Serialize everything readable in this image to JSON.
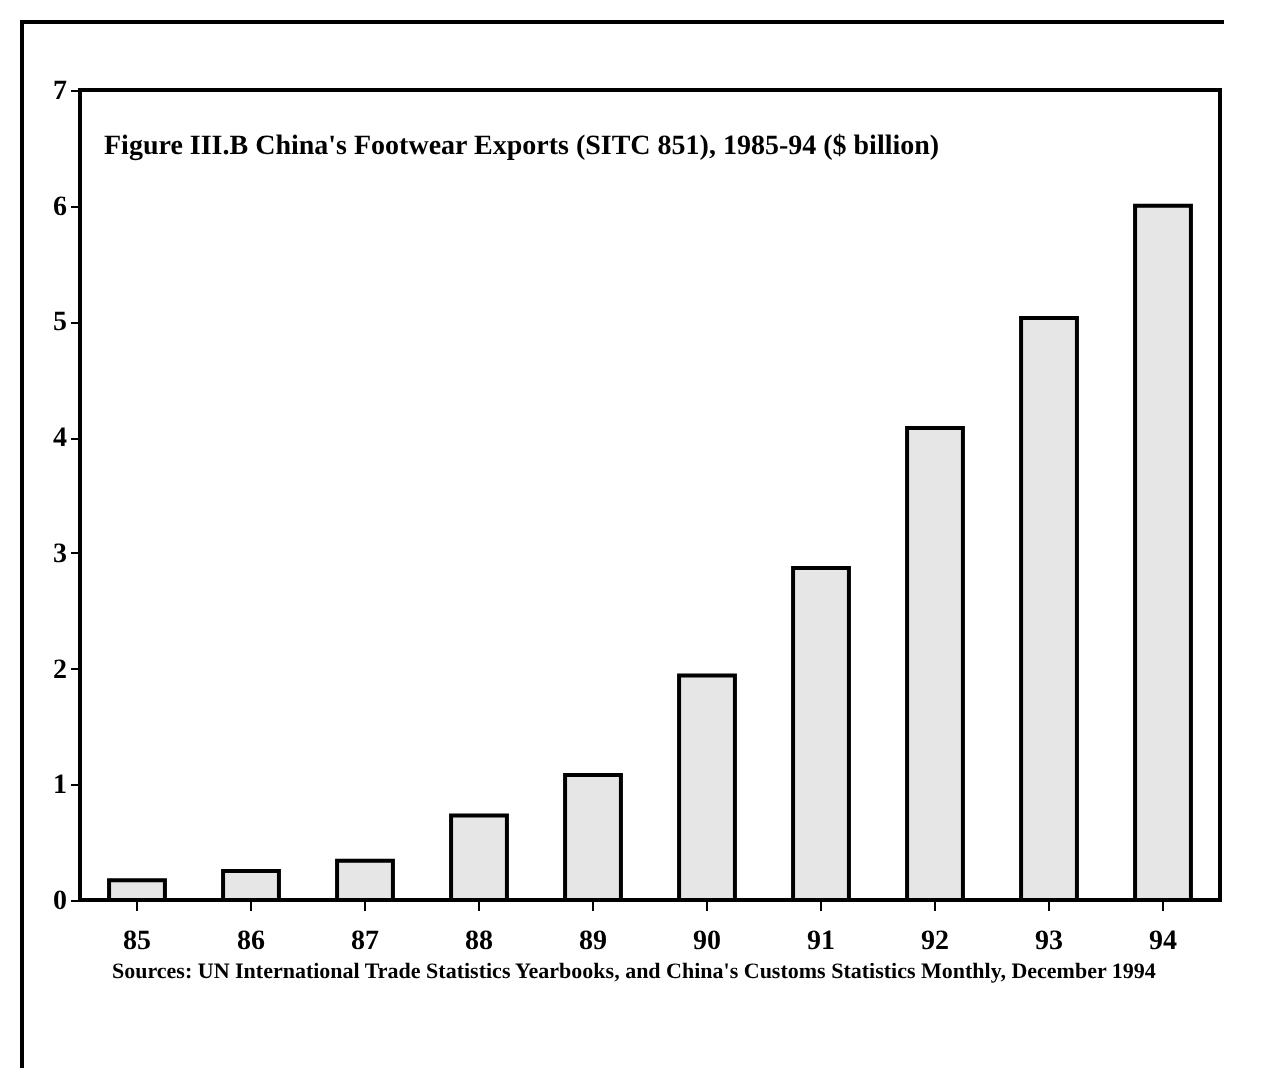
{
  "chart_data": {
    "type": "bar",
    "title": "Figure III.B China's Footwear Exports (SITC 851),\n1985-94     ($ billion)",
    "categories": [
      "85",
      "86",
      "87",
      "88",
      "89",
      "90",
      "91",
      "92",
      "93",
      "94"
    ],
    "values": [
      0.17,
      0.25,
      0.34,
      0.73,
      1.08,
      1.94,
      2.87,
      4.08,
      5.03,
      6.0
    ],
    "color": "#e6e6e6",
    "ylim": [
      0,
      7
    ],
    "yticks": [
      0,
      1,
      2,
      3,
      4,
      5,
      6,
      7
    ],
    "grid": false,
    "annotations": [
      "Sources: UN International Trade Statistics Yearbooks, and China's Customs Statistics Monthly, December 1994"
    ]
  }
}
